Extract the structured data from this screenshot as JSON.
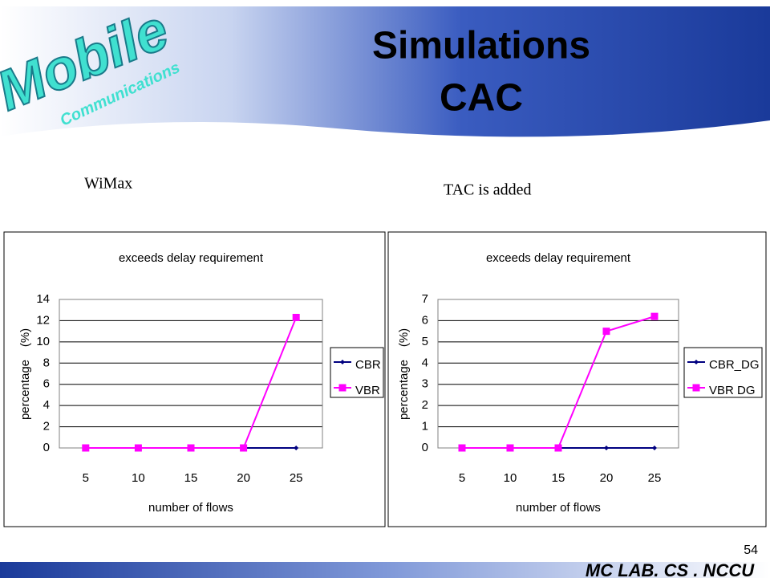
{
  "slide": {
    "title": [
      "Simulations",
      "CAC"
    ],
    "logo": [
      "Mobile",
      "Communications"
    ],
    "captions": [
      "WiMax",
      "TAC is added"
    ],
    "footer": "MC LAB. CS . NCCU",
    "page": 54
  },
  "chart_data": [
    {
      "type": "line",
      "title": "exceeds delay requirement",
      "x_label": "number of flows",
      "y_label": [
        "percentage",
        "(%)"
      ],
      "categories": [
        "5",
        "10",
        "15",
        "20",
        "25"
      ],
      "series": [
        {
          "name": "CBR",
          "color": "#000080",
          "marker": "diamond",
          "values": [
            0,
            0,
            0,
            0,
            0
          ]
        },
        {
          "name": "VBR",
          "color": "#ff00ff",
          "marker": "square",
          "values": [
            0,
            0,
            0,
            0,
            12.3
          ]
        }
      ],
      "ylim": [
        0,
        14
      ],
      "yticks": [
        0,
        2,
        4,
        6,
        8,
        10,
        12,
        14
      ],
      "grid": true,
      "legend": "right"
    },
    {
      "type": "line",
      "title": "exceeds delay requirement",
      "x_label": "number of flows",
      "y_label": [
        "percentage",
        "(%)"
      ],
      "categories": [
        "5",
        "10",
        "15",
        "20",
        "25"
      ],
      "series": [
        {
          "name": "CBR_DG",
          "color": "#000080",
          "marker": "diamond",
          "values": [
            0,
            0,
            0,
            0,
            0
          ]
        },
        {
          "name": "VBR DG",
          "color": "#ff00ff",
          "marker": "square",
          "values": [
            0,
            0,
            0,
            5.5,
            6.2
          ]
        }
      ],
      "ylim": [
        0,
        7
      ],
      "yticks": [
        0,
        1,
        2,
        3,
        4,
        5,
        6,
        7
      ],
      "grid": true,
      "legend": "right"
    }
  ]
}
